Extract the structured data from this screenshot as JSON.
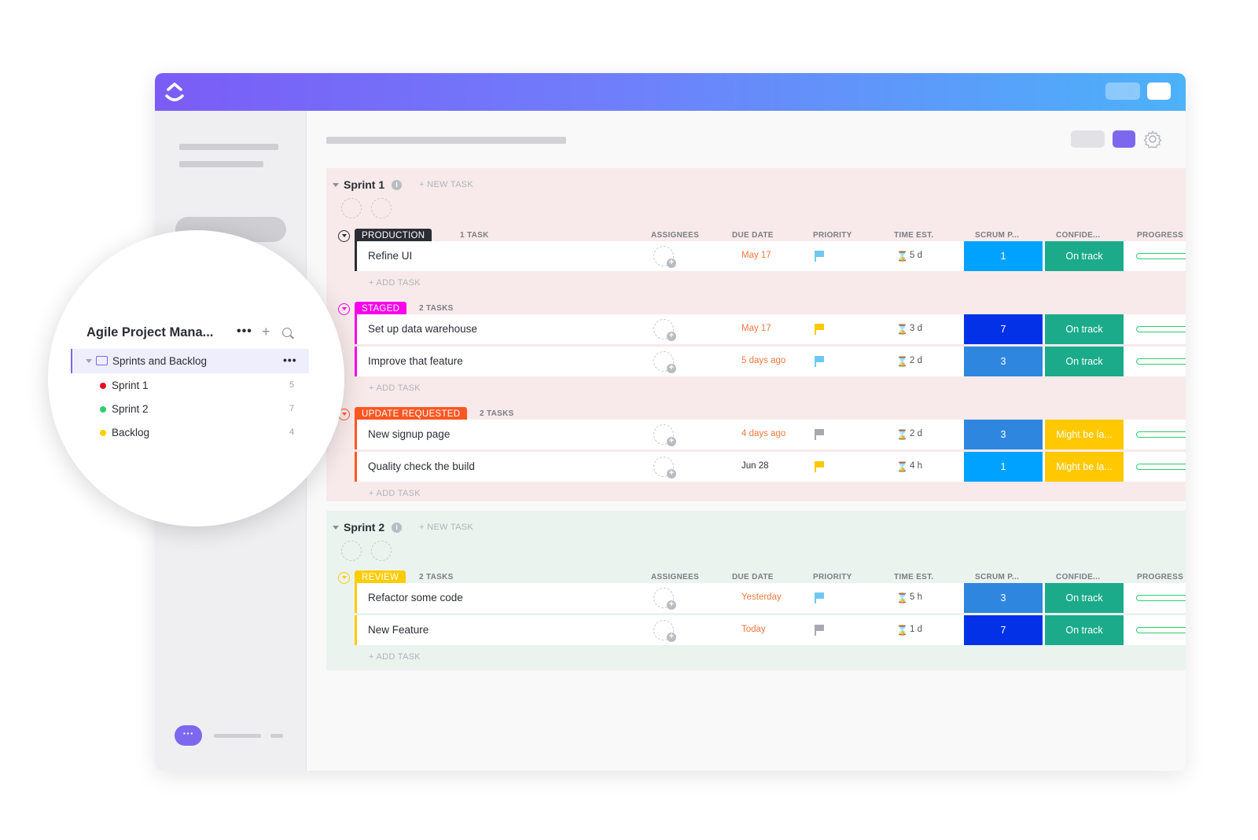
{
  "colors": {
    "accent": "#7b68ee",
    "production": "#2a2e34",
    "staged": "#f900ea",
    "update_requested": "#ff5722",
    "review": "#ffcc00",
    "scrum_light": "#00a2ff",
    "scrum_mid": "#2e86de",
    "scrum_dark": "#0231e8",
    "on_track": "#1bab8a",
    "might_be_late": "#ffc800",
    "overdue": "#f4793e",
    "neutral_text": "#2a2e34",
    "flag_blue": "#6fc8f4",
    "flag_yellow": "#ffc800",
    "flag_grey": "#a6aab0"
  },
  "columns": {
    "assignees": "ASSIGNEES",
    "due_date": "DUE DATE",
    "priority": "PRIORITY",
    "time_est": "TIME EST.",
    "scrum": "SCRUM P...",
    "confidence": "CONFIDE...",
    "progress": "PROGRESS"
  },
  "sidebar_zoom": {
    "title": "Agile Project Mana...",
    "more_icon": "more-icon",
    "folder": {
      "label": "Sprints and Backlog"
    },
    "items": [
      {
        "label": "Sprint 1",
        "count": "5",
        "color": "#e5101f"
      },
      {
        "label": "Sprint 2",
        "count": "7",
        "color": "#2ecd6f"
      },
      {
        "label": "Backlog",
        "count": "4",
        "color": "#ffd000"
      }
    ]
  },
  "sprints": [
    {
      "title": "Sprint 1",
      "new_task": "+ NEW TASK",
      "groups": [
        {
          "status": "PRODUCTION",
          "count": "1 TASK",
          "add_task": "+ ADD TASK",
          "tasks": [
            {
              "name": "Refine UI",
              "due": "May 17",
              "est": "5 d",
              "scrum": "1",
              "confidence": "On track",
              "progress": 0
            }
          ]
        },
        {
          "status": "STAGED",
          "count": "2 TASKS",
          "add_task": "+ ADD TASK",
          "tasks": [
            {
              "name": "Set up data warehouse",
              "due": "May 17",
              "est": "3 d",
              "scrum": "7",
              "confidence": "On track",
              "progress": 0
            },
            {
              "name": "Improve that feature",
              "due": "5 days ago",
              "est": "2 d",
              "scrum": "3",
              "confidence": "On track",
              "progress": 0
            }
          ]
        },
        {
          "status": "UPDATE REQUESTED",
          "count": "2 TASKS",
          "add_task": "+ ADD TASK",
          "tasks": [
            {
              "name": "New signup page",
              "due": "4 days ago",
              "est": "2 d",
              "scrum": "3",
              "confidence": "Might be la...",
              "progress": 0
            },
            {
              "name": "Quality check the build",
              "due": "Jun 28",
              "est": "4 h",
              "scrum": "1",
              "confidence": "Might be la...",
              "progress": 0
            }
          ]
        }
      ]
    },
    {
      "title": "Sprint 2",
      "new_task": "+ NEW TASK",
      "groups": [
        {
          "status": "REVIEW",
          "count": "2 TASKS",
          "add_task": "+ ADD TASK",
          "tasks": [
            {
              "name": "Refactor some code",
              "due": "Yesterday",
              "est": "5 h",
              "scrum": "3",
              "confidence": "On track",
              "progress": 0
            },
            {
              "name": "New Feature",
              "due": "Today",
              "est": "1 d",
              "scrum": "7",
              "confidence": "On track",
              "progress": 0
            }
          ]
        }
      ]
    }
  ]
}
